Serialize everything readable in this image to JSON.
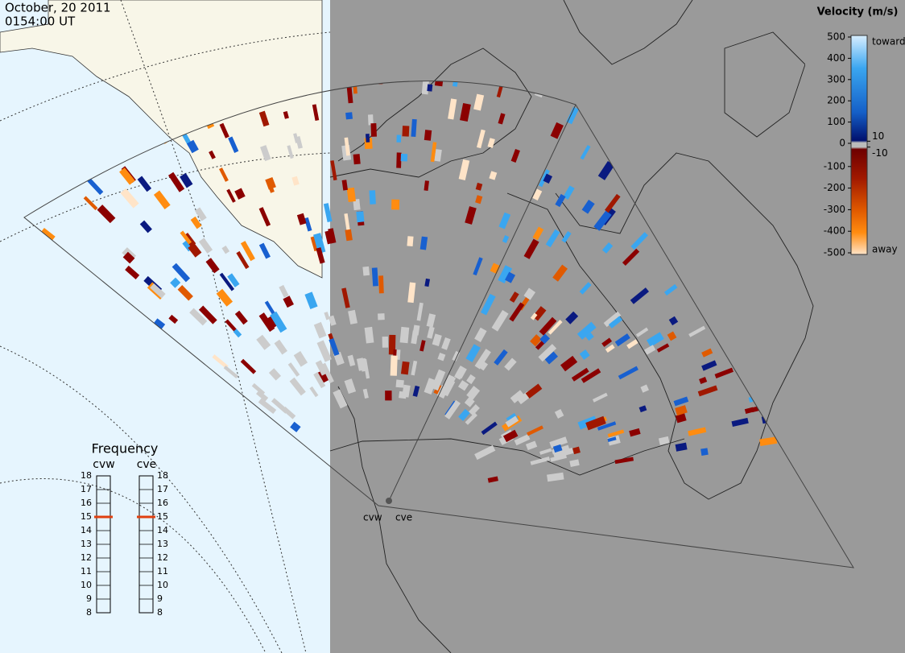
{
  "header": {
    "date": "October, 20 2011",
    "time": "0154:00 UT"
  },
  "colorbar": {
    "title": "Velocity (m/s)",
    "ticks_left": [
      500,
      400,
      300,
      200,
      100,
      0,
      -100,
      -200,
      -300,
      -400,
      -500
    ],
    "ticks_right": [
      10,
      -10
    ],
    "toward": "toward",
    "away": "away"
  },
  "frequency": {
    "title": "Frequency",
    "radars": [
      {
        "name": "cvw",
        "value": 15
      },
      {
        "name": "cve",
        "value": 15
      }
    ],
    "ticks": [
      18,
      17,
      16,
      15,
      14,
      13,
      12,
      11,
      10,
      9,
      8
    ]
  },
  "map": {
    "radars": [
      "cvw",
      "cve"
    ]
  }
}
